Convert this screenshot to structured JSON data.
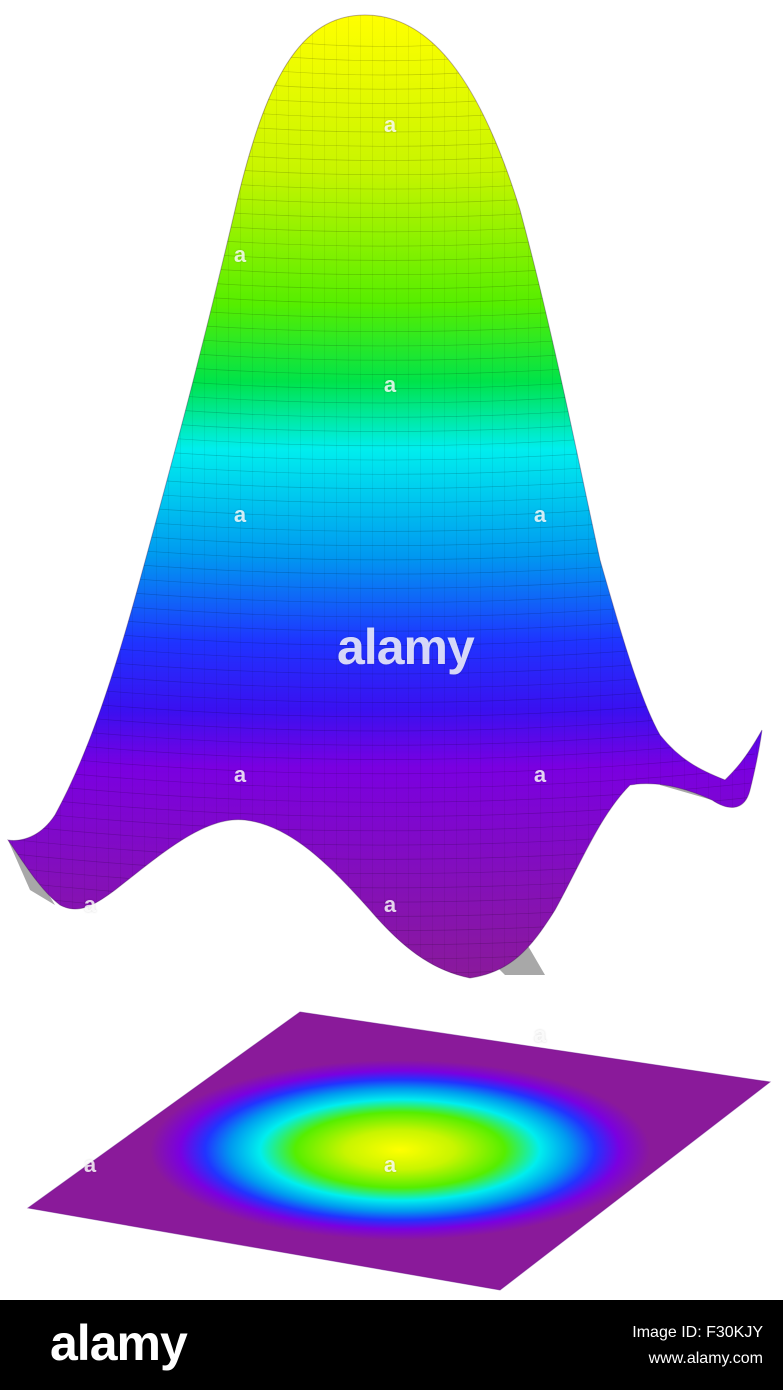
{
  "watermark": {
    "small_glyph": "a",
    "big_logo": "alamy"
  },
  "footer": {
    "logo": "alamy",
    "image_id": "Image ID: F30KJY",
    "url": "www.alamy.com"
  },
  "colors": {
    "background": "#ffffff",
    "footer_bg": "#000000",
    "peak": "#ffff00",
    "green": "#66ee00",
    "cyan": "#00eeee",
    "blue": "#2233ff",
    "violet": "#7a00e0",
    "purple": "#8a1a9a",
    "underside": "#a8a8a8"
  }
}
